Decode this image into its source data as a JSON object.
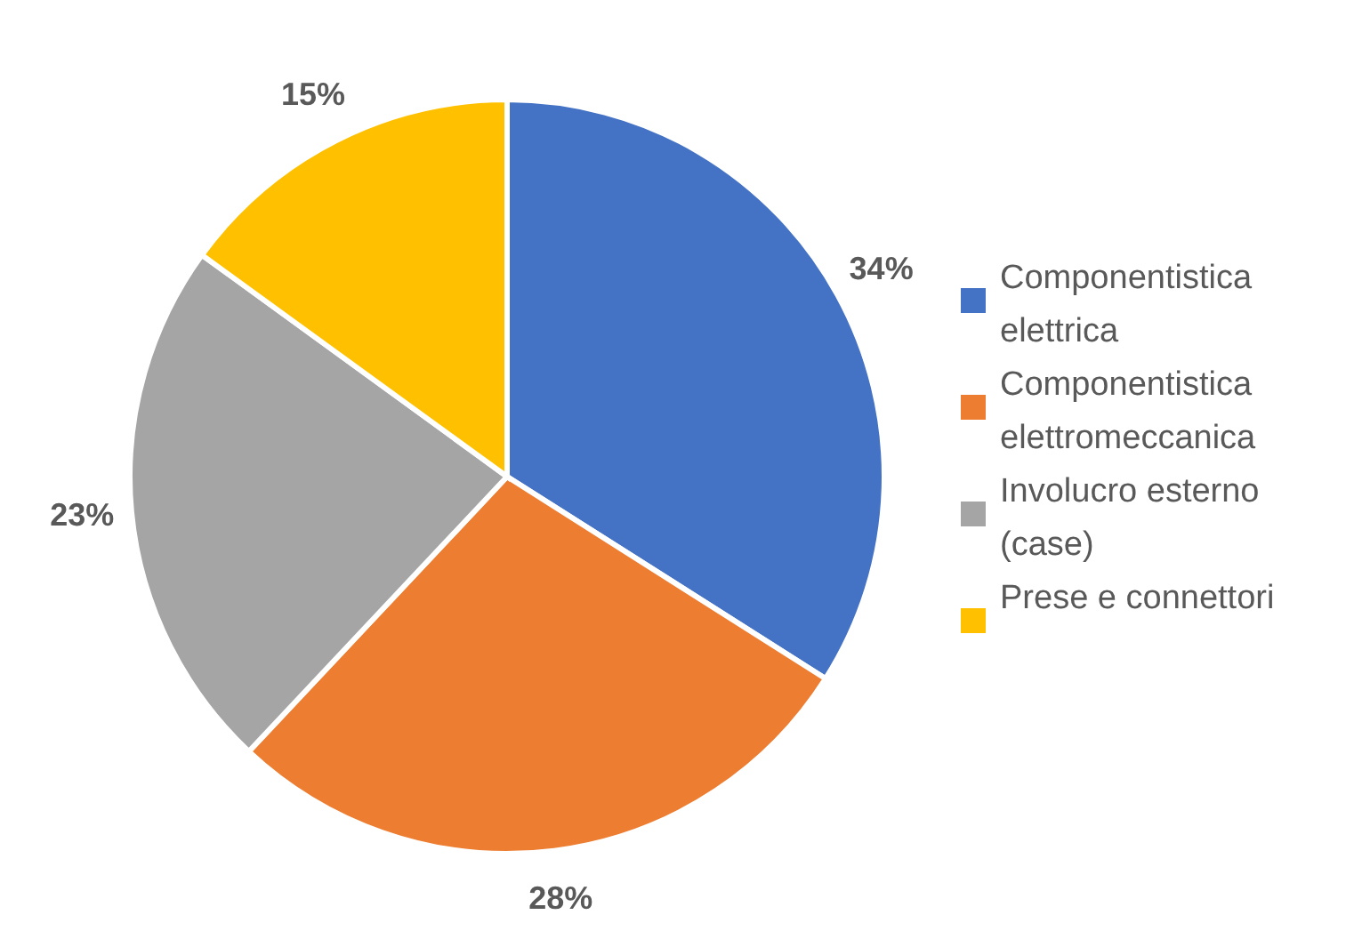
{
  "chart_data": {
    "type": "pie",
    "categories": [
      "Componentistica elettrica",
      "Componentistica elettromeccanica",
      "Involucro esterno (case)",
      "Prese e connettori"
    ],
    "values": [
      34,
      28,
      23,
      15
    ],
    "colors": [
      "#4472c4",
      "#ed7d31",
      "#a5a5a5",
      "#ffc000"
    ],
    "value_labels": [
      "34%",
      "28%",
      "23%",
      "15%"
    ],
    "legend": "right"
  }
}
